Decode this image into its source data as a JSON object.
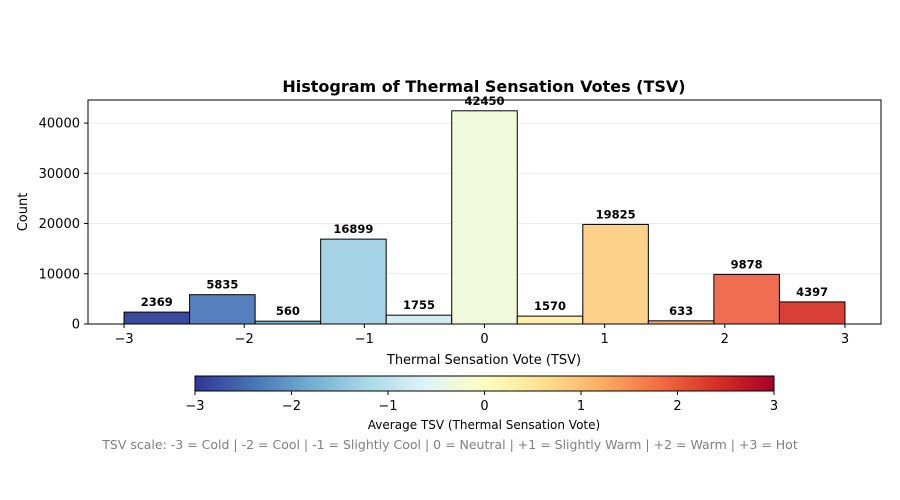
{
  "chart_data": {
    "type": "bar",
    "title": "Histogram of Thermal Sensation Votes (TSV)",
    "xlabel": "Thermal Sensation Vote (TSV)",
    "ylabel": "Count",
    "xlim": [
      -3.3,
      3.3
    ],
    "ylim": [
      0,
      44600
    ],
    "x_ticks": [
      -3,
      -2,
      -1,
      0,
      1,
      2,
      3
    ],
    "x_tick_labels": [
      "−3",
      "−2",
      "−1",
      "0",
      "1",
      "2",
      "3"
    ],
    "y_ticks": [
      0,
      10000,
      20000,
      30000,
      40000
    ],
    "y_tick_labels": [
      "0",
      "10000",
      "20000",
      "30000",
      "40000"
    ],
    "grid": "horizontal, light",
    "bins": [
      {
        "x0": -3.0,
        "x1": -2.4545,
        "value": 2369,
        "label": "2369",
        "color": "#3a4a9c"
      },
      {
        "x0": -2.4545,
        "x1": -1.9091,
        "value": 5835,
        "label": "5835",
        "color": "#5580bd"
      },
      {
        "x0": -1.9091,
        "x1": -1.3636,
        "value": 560,
        "label": "560",
        "color": "#7fb2d6"
      },
      {
        "x0": -1.3636,
        "x1": -0.8182,
        "value": 16899,
        "label": "16899",
        "color": "#a6d2e6"
      },
      {
        "x0": -0.8182,
        "x1": -0.2727,
        "value": 1755,
        "label": "1755",
        "color": "#d6ecf3"
      },
      {
        "x0": -0.2727,
        "x1": 0.2727,
        "value": 42450,
        "label": "42450",
        "color": "#f1f9db"
      },
      {
        "x0": 0.2727,
        "x1": 0.8182,
        "value": 1570,
        "label": "1570",
        "color": "#feefac"
      },
      {
        "x0": 0.8182,
        "x1": 1.3636,
        "value": 19825,
        "label": "19825",
        "color": "#fed18a"
      },
      {
        "x0": 1.3636,
        "x1": 1.9091,
        "value": 633,
        "label": "633",
        "color": "#fba66b"
      },
      {
        "x0": 1.9091,
        "x1": 2.4545,
        "value": 9878,
        "label": "9878",
        "color": "#ef6e51"
      },
      {
        "x0": 2.4545,
        "x1": 3.0,
        "value": 4397,
        "label": "4397",
        "color": "#d73f37"
      }
    ],
    "colorbar": {
      "label": "Average TSV (Thermal Sensation Vote)",
      "range": [
        -3,
        3
      ],
      "ticks": [
        -3,
        -2,
        -1,
        0,
        1,
        2,
        3
      ],
      "tick_labels": [
        "−3",
        "−2",
        "−1",
        "0",
        "1",
        "2",
        "3"
      ],
      "colormap": [
        "#313695",
        "#4575b4",
        "#74add1",
        "#abd9e9",
        "#e0f3f8",
        "#ffffbf",
        "#fee090",
        "#fdae61",
        "#f46d43",
        "#d73027",
        "#a50026"
      ],
      "orientation": "horizontal",
      "placement": "below chart"
    },
    "footnote": "TSV scale: -3 = Cold | -2 = Cool | -1 = Slightly Cool | 0 = Neutral | +1 = Slightly Warm | +2 = Warm | +3 = Hot"
  }
}
